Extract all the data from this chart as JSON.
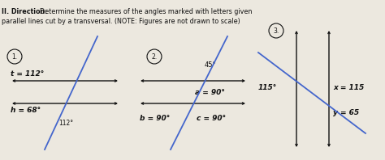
{
  "title_bold": "II. Direction: ",
  "title_rest": "Determine the measures of the angles marked with letters given",
  "title_line2": "parallel lines cut by a transversal. (NOTE: Figures are not drawn to scale)",
  "bg_color": "#ece8df",
  "text_color": "#111111",
  "blue_color": "#4466cc",
  "fig1": {
    "t_eq": "t = 112°",
    "h_eq": "h = 68°",
    "angle_val": "112°",
    "circ_label": "1."
  },
  "fig2": {
    "angle_45": "45°",
    "a_eq": "a = 90°",
    "b_eq": "b = 90°",
    "c_eq": "c = 90°",
    "circ_label": "2."
  },
  "fig3": {
    "angle_115": "115°",
    "x_eq": "x = 115",
    "y_eq": "y = 65",
    "circ_label": "3."
  }
}
